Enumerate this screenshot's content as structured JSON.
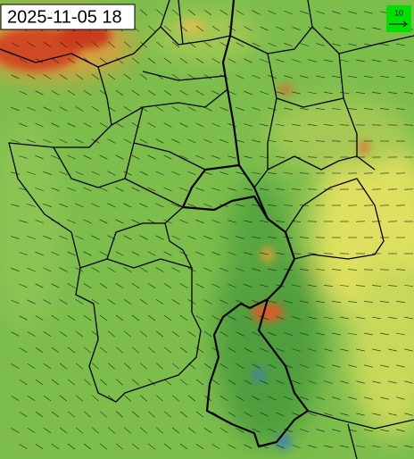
{
  "timestamp": "2025-11-05 18",
  "wind_legend": {
    "label": "10"
  }
}
